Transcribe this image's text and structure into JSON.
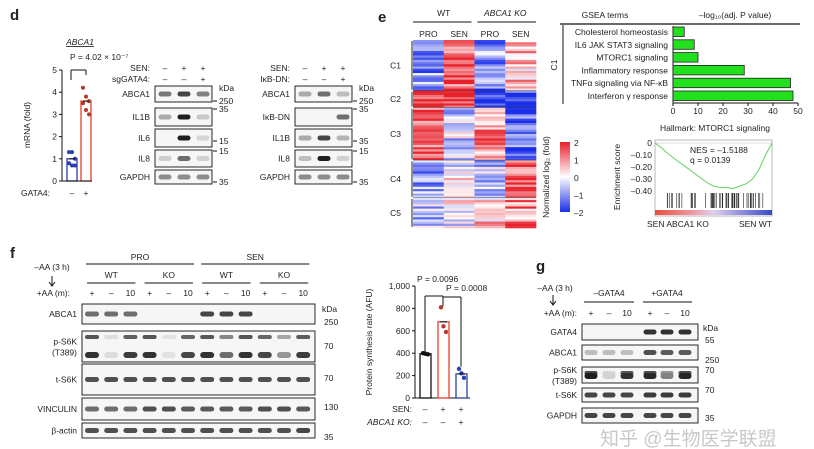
{
  "panels": {
    "d": {
      "label": "d",
      "bar_chart": {
        "type": "bar",
        "title": "ABCA1",
        "pvalue": "P = 4.02 × 10⁻⁷",
        "ylabel": "mRNA (fold)",
        "ylim": [
          0,
          5
        ],
        "yticks": [
          "0",
          "1",
          "2",
          "3",
          "4",
          "5"
        ],
        "row_label": "GATA4:",
        "categories": [
          "–",
          "+"
        ],
        "values": [
          1.0,
          3.6
        ],
        "points": [
          [
            1.3,
            1.3,
            1.0,
            0.8,
            0.7,
            0.7
          ],
          [
            4.2,
            3.8,
            3.6,
            3.5,
            3.2,
            3.0
          ]
        ],
        "colors": [
          "#2b3faa",
          "#e8402a"
        ],
        "point_colors": [
          "#2b3faa",
          "#b23a2e"
        ]
      },
      "blot1": {
        "conditions": [
          {
            "label": "SEN:",
            "values": [
              "–",
              "+",
              "+"
            ]
          },
          {
            "label": "sgGATA4:",
            "values": [
              "–",
              "–",
              "+"
            ]
          }
        ],
        "kda": "kDa",
        "rows": [
          {
            "label": "ABCA1",
            "bands": [
              0.55,
              0.8,
              0.5
            ]
          },
          {
            "label": "IL1B",
            "bands": [
              0.3,
              1.0,
              0.15
            ]
          },
          {
            "label": "IL6",
            "bands": [
              0.0,
              1.0,
              0.08
            ]
          },
          {
            "label": "IL8",
            "bands": [
              0.12,
              0.6,
              0.1
            ]
          },
          {
            "label": "GAPDH",
            "bands": [
              0.45,
              0.45,
              0.45
            ]
          }
        ],
        "markers": [
          "250",
          "35",
          "15",
          "15",
          "35"
        ]
      },
      "blot2": {
        "conditions": [
          {
            "label": "SEN:",
            "values": [
              "–",
              "+",
              "+"
            ]
          },
          {
            "label": "IκB-DN:",
            "values": [
              "–",
              "–",
              "+"
            ]
          }
        ],
        "kda": "kDa",
        "rows": [
          {
            "label": "ABCA1",
            "bands": [
              0.3,
              0.6,
              0.2
            ]
          },
          {
            "label": "IκB-DN",
            "bands": [
              0.0,
              0.0,
              0.6
            ]
          },
          {
            "label": "IL1B",
            "bands": [
              0.3,
              0.8,
              0.25
            ]
          },
          {
            "label": "IL8",
            "bands": [
              0.2,
              1.0,
              0.1
            ]
          },
          {
            "label": "GAPDH",
            "bands": [
              0.45,
              0.45,
              0.45
            ]
          }
        ],
        "markers": [
          "250",
          "35",
          "35",
          "15",
          "35"
        ]
      }
    },
    "e": {
      "label": "e",
      "heatmap": {
        "type": "heatmap",
        "groups": [
          "WT",
          "ABCA1 KO"
        ],
        "columns": [
          "PRO",
          "SEN",
          "PRO",
          "SEN"
        ],
        "clusters": [
          "C1",
          "C2",
          "C3",
          "C4",
          "C5"
        ],
        "cluster_means": [
          [
            -1,
            1.5,
            -1,
            0.5
          ],
          [
            2,
            2,
            -2,
            -2
          ],
          [
            1.5,
            -0.5,
            1,
            -1.5
          ],
          [
            -1,
            0,
            -0.5,
            1.5
          ],
          [
            -0.5,
            0,
            0.5,
            1
          ]
        ],
        "colorbar_label": "Normalized log₂ (fold)",
        "colorbar_ticks": [
          "2",
          "1",
          "0",
          "–1",
          "–2"
        ],
        "colorbar_range": [
          -2,
          2
        ],
        "colors": {
          "high": "#e8202a",
          "mid": "#ffffff",
          "low": "#1a2ee8"
        }
      },
      "gsea": {
        "type": "bar",
        "header_terms": "GSEA terms",
        "header_value": "–log₁₀(adj. P value)",
        "cluster": "C1",
        "categories": [
          "Cholesterol homeostasis",
          "IL6 JAK STAT3 signaling",
          "MTORC1 signaling",
          "Inflammatory response",
          "TNFα signaling via NF-κB",
          "Interferon γ response"
        ],
        "values": [
          4.5,
          8.5,
          10,
          28.5,
          47,
          48
        ],
        "xlim": [
          0,
          50
        ],
        "xticks": [
          "0",
          "10",
          "20",
          "30",
          "40",
          "50"
        ],
        "bar_color": "#22e01e"
      },
      "enrichment": {
        "type": "line",
        "title": "Hallmark: MTORC1 signaling",
        "ylabel": "Enrichment score",
        "yticks": [
          "0",
          "–0.10",
          "–0.20",
          "–0.30",
          "–0.40"
        ],
        "ylim": [
          -0.42,
          0.0
        ],
        "nes": "NES = –1.5188",
        "q": "q = 0.0139",
        "es_curve": [
          0,
          -0.04,
          -0.09,
          -0.13,
          -0.17,
          -0.21,
          -0.25,
          -0.29,
          -0.33,
          -0.36,
          -0.37,
          -0.37,
          -0.38,
          -0.36,
          -0.34,
          -0.3,
          -0.22,
          -0.1,
          0
        ],
        "left_label": "SEN ABCA1 KO",
        "right_label": "SEN WT",
        "left_color": "#e8503a",
        "right_color": "#3a48c8",
        "line_color": "#5ed45a"
      }
    },
    "f": {
      "label": "f",
      "blot": {
        "aa_pre": "–AA (3 h)",
        "aa_row": "+AA (m):",
        "groups": [
          "PRO",
          "SEN"
        ],
        "subgroups": [
          "WT",
          "KO",
          "WT",
          "KO"
        ],
        "lanes": [
          "+",
          "–",
          "10",
          "+",
          "–",
          "10",
          "+",
          "–",
          "10",
          "+",
          "–",
          "10"
        ],
        "kda": "kDa",
        "rows": [
          {
            "label": "ABCA1",
            "bands": [
              0.6,
              0.6,
              0.6,
              0,
              0,
              0,
              0.8,
              0.8,
              0.8,
              0,
              0,
              0
            ],
            "marker": "250"
          },
          {
            "label": "p-S6K (T389)",
            "bands": [
              0.9,
              0.05,
              0.85,
              0.9,
              0.02,
              0.8,
              0.9,
              0.6,
              0.9,
              0.8,
              0.4,
              0.85
            ],
            "marker": "70"
          },
          {
            "label": "t-S6K",
            "bands": [
              0.75,
              0.75,
              0.75,
              0.75,
              0.75,
              0.75,
              0.75,
              0.75,
              0.75,
              0.75,
              0.75,
              0.75
            ],
            "marker": "70"
          },
          {
            "label": "VINCULIN",
            "bands": [
              0.6,
              0.6,
              0.6,
              0.75,
              0.75,
              0.7,
              0.7,
              0.7,
              0.7,
              0.75,
              0.75,
              0.7
            ],
            "marker": "130"
          },
          {
            "label": "β-actin",
            "bands": [
              0.75,
              0.75,
              0.75,
              0.75,
              0.75,
              0.75,
              0.75,
              0.75,
              0.75,
              0.75,
              0.75,
              0.8
            ],
            "marker": "35"
          }
        ]
      },
      "bar_chart": {
        "type": "bar",
        "ylabel": "Protein synthesis rate (AFU)",
        "ylim": [
          0,
          1000
        ],
        "yticks": [
          "0",
          "200",
          "400",
          "600",
          "800",
          "1,000"
        ],
        "p1": "P = 0.0096",
        "p2": "P = 0.0008",
        "conditions": [
          {
            "label": "SEN:",
            "values": [
              "–",
              "+",
              "+"
            ]
          },
          {
            "label": "ABCA1 KO:",
            "values": [
              "–",
              "–",
              "+"
            ]
          }
        ],
        "values": [
          395,
          680,
          215
        ],
        "points": [
          [
            400,
            395,
            390
          ],
          [
            810,
            640,
            590
          ],
          [
            260,
            220,
            180
          ]
        ],
        "colors": [
          "#111111",
          "#e8402a",
          "#2b3faa"
        ],
        "point_colors": [
          "#111111",
          "#b23a2e",
          "#2b3faa"
        ]
      }
    },
    "g": {
      "label": "g",
      "blot": {
        "aa_pre": "–AA (3 h)",
        "aa_row": "+AA (m):",
        "groups": [
          "–GATA4",
          "+GATA4"
        ],
        "lanes": [
          "+",
          "–",
          "10",
          "+",
          "–",
          "10"
        ],
        "kda": "kDa",
        "rows": [
          {
            "label": "GATA4",
            "bands": [
              0,
              0,
              0,
              0.9,
              0.9,
              0.9
            ],
            "marker": "55"
          },
          {
            "label": "ABCA1",
            "bands": [
              0.2,
              0.2,
              0.2,
              0.75,
              0.7,
              0.7
            ],
            "marker": "250"
          },
          {
            "label": "p-S6K (T389)",
            "bands": [
              1.0,
              0.1,
              0.9,
              0.95,
              0.5,
              0.95
            ],
            "marker": "70"
          },
          {
            "label": "t-S6K",
            "bands": [
              0.8,
              0.8,
              0.8,
              0.85,
              0.85,
              0.85
            ],
            "marker": "70"
          },
          {
            "label": "GAPDH",
            "bands": [
              0.8,
              0.8,
              0.8,
              0.8,
              0.8,
              0.8
            ],
            "marker": "35"
          }
        ]
      }
    }
  },
  "watermark": "知乎 @生物医学联盟"
}
